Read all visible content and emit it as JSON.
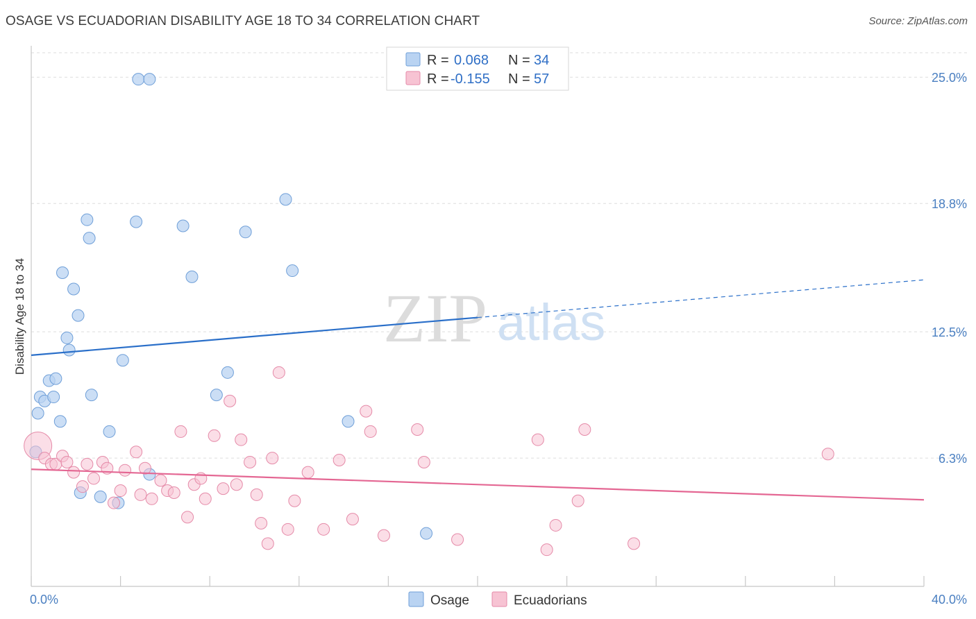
{
  "title": "OSAGE VS ECUADORIAN DISABILITY AGE 18 TO 34 CORRELATION CHART",
  "source": "Source: ZipAtlas.com",
  "watermark": {
    "zip": "ZIP",
    "atlas": "atlas"
  },
  "colors": {
    "osage_fill": "#b9d3f2",
    "osage_stroke": "#6f9fd8",
    "osage_line": "#2a6fc9",
    "ecu_fill": "#f7c3d3",
    "ecu_stroke": "#e58aa8",
    "ecu_line": "#e46793",
    "tick_label": "#4a7fc1",
    "grid": "#dddddd"
  },
  "legend": {
    "rows": [
      {
        "r_label": "R =",
        "r_value": "0.068",
        "n_label": "N =",
        "n_value": "34"
      },
      {
        "r_label": "R =",
        "r_value": "-0.155",
        "n_label": "N =",
        "n_value": "57"
      }
    ]
  },
  "chart_data": {
    "type": "scatter",
    "xlabel": "",
    "ylabel": "Disability Age 18 to 34",
    "xlim": [
      0,
      40
    ],
    "ylim": [
      0,
      26.2
    ],
    "x_tick_labels": [
      "0.0%",
      "40.0%"
    ],
    "y_ticks": [
      6.3,
      12.5,
      18.8,
      25.0
    ],
    "y_tick_labels": [
      "6.3%",
      "12.5%",
      "18.8%",
      "25.0%"
    ],
    "grid": "horizontal dashed",
    "legend_position": "top-center",
    "series": [
      {
        "name": "Osage",
        "points": [
          [
            0.2,
            6.6
          ],
          [
            0.3,
            8.5
          ],
          [
            0.4,
            9.3
          ],
          [
            0.6,
            9.1
          ],
          [
            0.8,
            10.1
          ],
          [
            1.0,
            9.3
          ],
          [
            1.1,
            10.2
          ],
          [
            1.3,
            8.1
          ],
          [
            1.4,
            15.4
          ],
          [
            1.6,
            12.2
          ],
          [
            1.7,
            11.6
          ],
          [
            1.9,
            14.6
          ],
          [
            2.1,
            13.3
          ],
          [
            2.2,
            4.6
          ],
          [
            2.5,
            18.0
          ],
          [
            2.6,
            17.1
          ],
          [
            2.7,
            9.4
          ],
          [
            3.1,
            4.4
          ],
          [
            3.5,
            7.6
          ],
          [
            3.9,
            4.1
          ],
          [
            4.1,
            11.1
          ],
          [
            4.7,
            17.9
          ],
          [
            4.8,
            24.9
          ],
          [
            5.3,
            24.9
          ],
          [
            5.3,
            5.5
          ],
          [
            6.8,
            17.7
          ],
          [
            7.2,
            15.2
          ],
          [
            8.3,
            9.4
          ],
          [
            8.8,
            10.5
          ],
          [
            9.6,
            17.4
          ],
          [
            11.4,
            19.0
          ],
          [
            11.7,
            15.5
          ],
          [
            14.2,
            8.1
          ],
          [
            17.7,
            2.6
          ]
        ],
        "trend": {
          "x0": 0,
          "y0": 11.35,
          "x1": 20,
          "y1": 13.2,
          "dash_x1": 40,
          "dash_y1": 15.05
        }
      },
      {
        "name": "Ecuadorians",
        "points": [
          [
            0.3,
            6.9
          ],
          [
            0.6,
            6.3
          ],
          [
            0.9,
            6.0
          ],
          [
            1.1,
            6.0
          ],
          [
            1.4,
            6.4
          ],
          [
            1.6,
            6.1
          ],
          [
            1.9,
            5.6
          ],
          [
            2.3,
            4.9
          ],
          [
            2.5,
            6.0
          ],
          [
            2.8,
            5.3
          ],
          [
            3.2,
            6.1
          ],
          [
            3.4,
            5.8
          ],
          [
            3.7,
            4.1
          ],
          [
            4.0,
            4.7
          ],
          [
            4.2,
            5.7
          ],
          [
            4.7,
            6.6
          ],
          [
            4.9,
            4.5
          ],
          [
            5.1,
            5.8
          ],
          [
            5.4,
            4.3
          ],
          [
            5.8,
            5.2
          ],
          [
            6.1,
            4.7
          ],
          [
            6.4,
            4.6
          ],
          [
            6.7,
            7.6
          ],
          [
            7.0,
            3.4
          ],
          [
            7.3,
            5.0
          ],
          [
            7.6,
            5.3
          ],
          [
            7.8,
            4.3
          ],
          [
            8.2,
            7.4
          ],
          [
            8.6,
            4.8
          ],
          [
            8.9,
            9.1
          ],
          [
            9.2,
            5.0
          ],
          [
            9.4,
            7.2
          ],
          [
            9.8,
            6.1
          ],
          [
            10.1,
            4.5
          ],
          [
            10.3,
            3.1
          ],
          [
            10.6,
            2.1
          ],
          [
            10.8,
            6.3
          ],
          [
            11.1,
            10.5
          ],
          [
            11.5,
            2.8
          ],
          [
            11.8,
            4.2
          ],
          [
            12.4,
            5.6
          ],
          [
            13.1,
            2.8
          ],
          [
            13.8,
            6.2
          ],
          [
            14.4,
            3.3
          ],
          [
            15.0,
            8.6
          ],
          [
            15.2,
            7.6
          ],
          [
            15.8,
            2.5
          ],
          [
            17.3,
            7.7
          ],
          [
            17.6,
            6.1
          ],
          [
            19.1,
            2.3
          ],
          [
            22.7,
            7.2
          ],
          [
            23.1,
            1.8
          ],
          [
            23.5,
            3.0
          ],
          [
            24.5,
            4.2
          ],
          [
            24.8,
            7.7
          ],
          [
            27.0,
            2.1
          ],
          [
            35.7,
            6.5
          ]
        ],
        "trend": {
          "x0": 0,
          "y0": 5.75,
          "x1": 40,
          "y1": 4.25
        }
      }
    ]
  },
  "bottom_legend": [
    {
      "label": "Osage"
    },
    {
      "label": "Ecuadorians"
    }
  ]
}
